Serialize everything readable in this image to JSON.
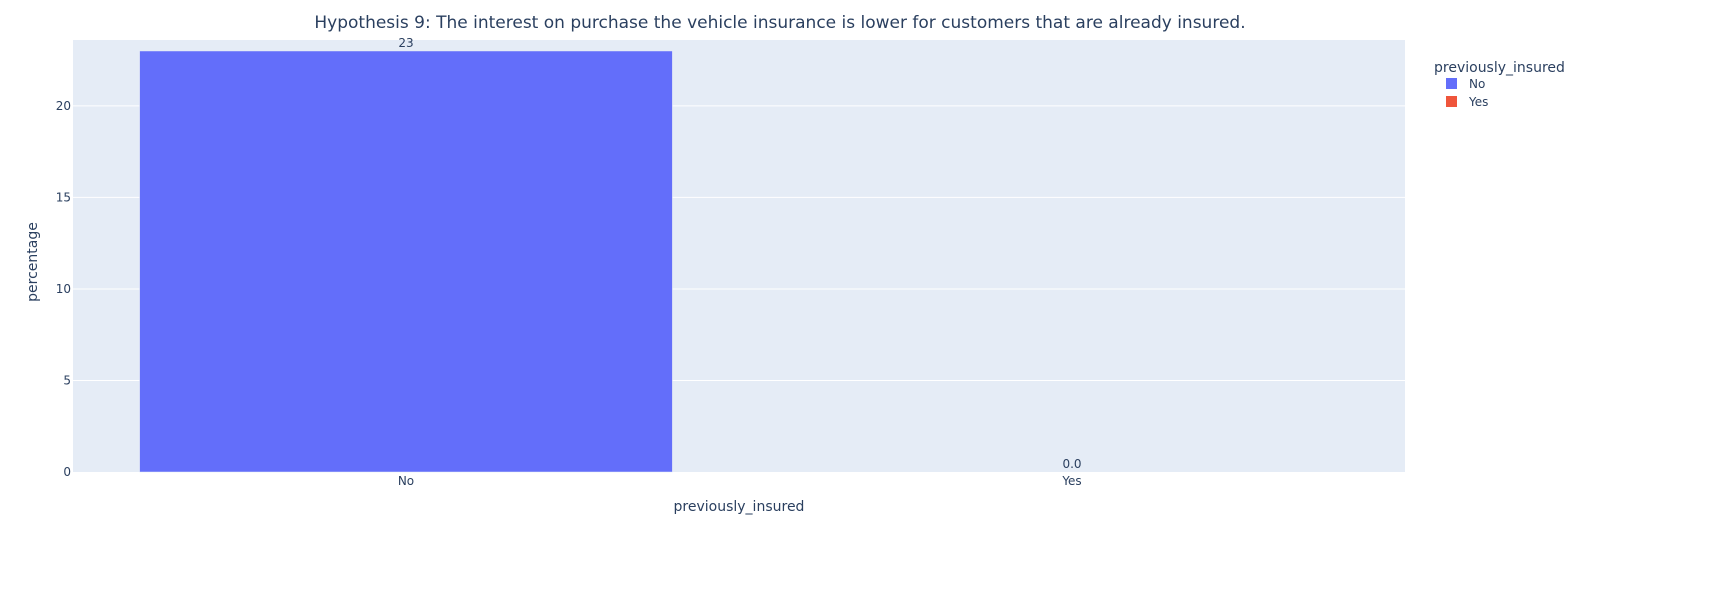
{
  "chart_data": {
    "type": "bar",
    "title": "Hypothesis 9: The interest on purchase the vehicle insurance is lower for customers that are already insured.",
    "xlabel": "previously_insured",
    "ylabel": "percentage",
    "categories": [
      "No",
      "Yes"
    ],
    "ylim": [
      0,
      23.6
    ],
    "yticks": [
      0,
      5,
      10,
      15,
      20
    ],
    "grid": true,
    "legend_title": "previously_insured",
    "legend_position": "top-right",
    "series": [
      {
        "name": "No",
        "color": "#636efa",
        "category": "No",
        "value": 23,
        "label": "23"
      },
      {
        "name": "Yes",
        "color": "#ef553b",
        "category": "Yes",
        "value": 0.0,
        "label": "0.0"
      }
    ],
    "colors": {
      "plot_background": "#e5ecf6",
      "grid": "#ffffff",
      "text": "#2a3f5f"
    }
  }
}
